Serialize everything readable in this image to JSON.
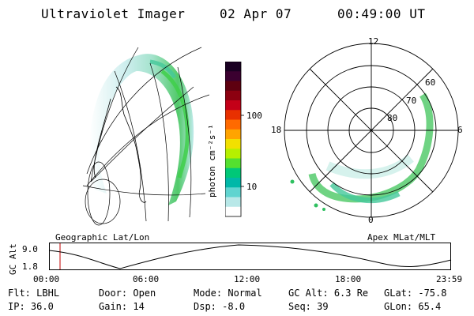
{
  "header": {
    "instrument": "Ultraviolet Imager",
    "date": "02 Apr 07",
    "time": "00:49:00 UT"
  },
  "colorbar": {
    "unit": "photon cm⁻²s⁻¹",
    "ticks": [
      "100",
      "10"
    ],
    "colors": [
      "#1a0022",
      "#3b0030",
      "#5e0010",
      "#8c0010",
      "#c40018",
      "#e83000",
      "#ff6a00",
      "#ffa400",
      "#f2e000",
      "#b6f000",
      "#54e030",
      "#00c878",
      "#00b8a8",
      "#60d4d0",
      "#b8e8e8",
      "#ffffff"
    ]
  },
  "left_panel": {
    "label": "Geographic Lat/Lon"
  },
  "right_panel": {
    "label": "Apex MLat/MLT",
    "mlt_labels": {
      "top": "12",
      "left": "18",
      "right": "6",
      "bottom": "0"
    },
    "lat_labels": [
      "60",
      "70",
      "80"
    ]
  },
  "altitude_plot": {
    "ylabel": "GC Alt",
    "yticks": [
      "9.0",
      "1.8"
    ],
    "xticks": [
      "00:00",
      "06:00",
      "12:00",
      "18:00",
      "23:59"
    ],
    "marker_color": "#c00000"
  },
  "footer": {
    "row1": [
      {
        "label": "Flt:",
        "value": "LBHL"
      },
      {
        "label": "Door:",
        "value": "Open"
      },
      {
        "label": "Mode:",
        "value": "Normal"
      },
      {
        "label": "GC Alt:",
        "value": "6.3 Re"
      },
      {
        "label": "GLat:",
        "value": "-75.8"
      }
    ],
    "row2": [
      {
        "label": "IP:",
        "value": "36.0"
      },
      {
        "label": "Gain:",
        "value": "14"
      },
      {
        "label": "Dsp:",
        "value": "-8.0"
      },
      {
        "label": "Seq:",
        "value": "39"
      },
      {
        "label": "GLon:",
        "value": "65.4"
      }
    ]
  }
}
